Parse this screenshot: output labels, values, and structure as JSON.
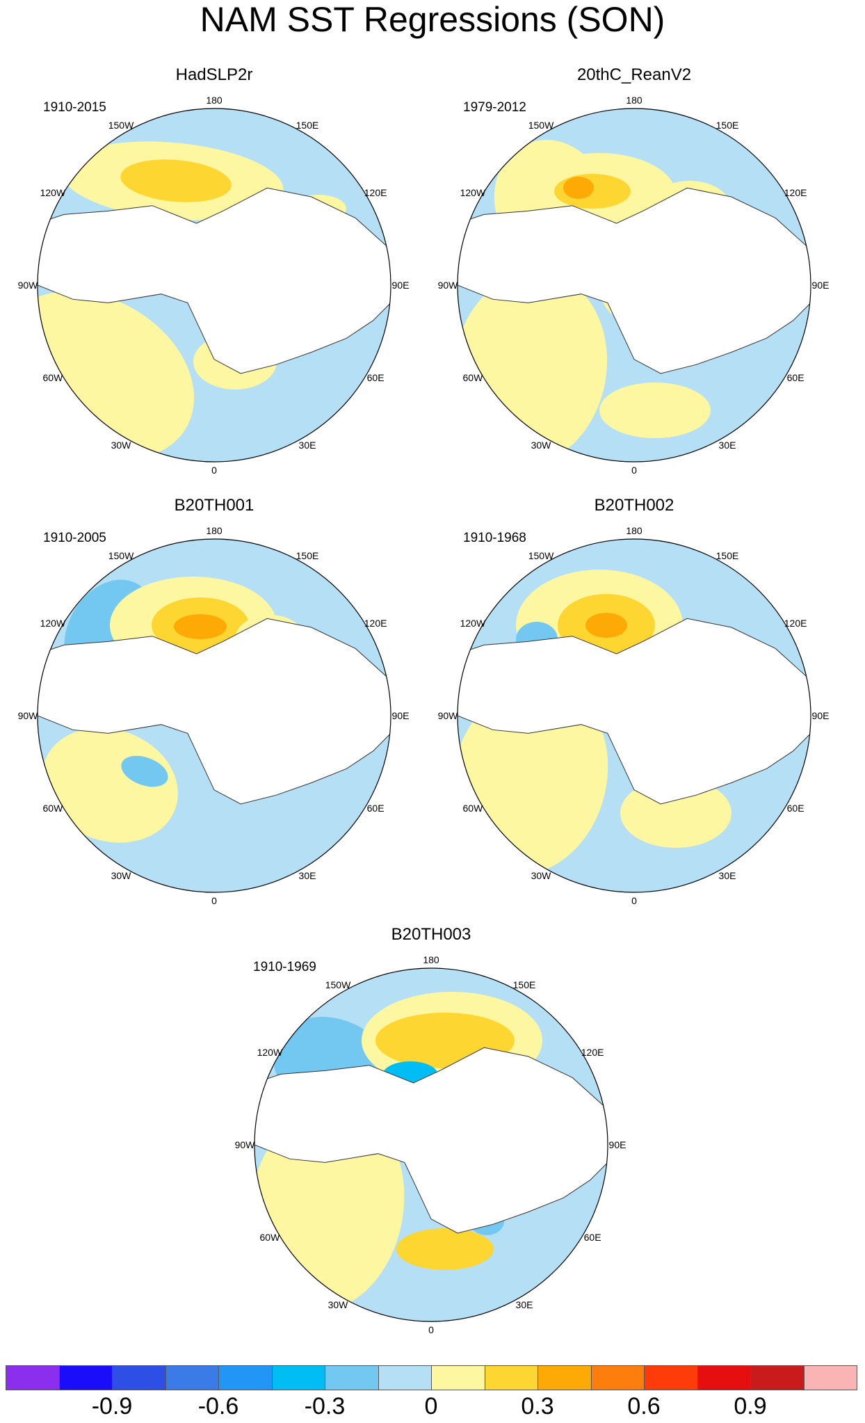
{
  "title": "NAM SST Regressions (SON)",
  "lon_labels": {
    "l180": "180",
    "l150e": "150E",
    "l120e": "120E",
    "l90e": "90E",
    "l60e": "60E",
    "l30e": "30E",
    "l0": "0",
    "l30w": "30W",
    "l60w": "60W",
    "l90w": "90W",
    "l120w": "120W",
    "l150w": "150W"
  },
  "panels": [
    {
      "title": "HadSLP2r",
      "period": "1910-2015"
    },
    {
      "title": "20thC_ReanV2",
      "period": "1979-2012"
    },
    {
      "title": "B20TH001",
      "period": "1910-2005"
    },
    {
      "title": "B20TH002",
      "period": "1910-1968"
    },
    {
      "title": "B20TH003",
      "period": "1910-1969"
    }
  ],
  "colorbar": {
    "colors": [
      "#8c2eee",
      "#1a0dfa",
      "#2e4fe6",
      "#3a7be8",
      "#2196f7",
      "#00bdf4",
      "#72c8f1",
      "#b4dff4",
      "#fdf7a1",
      "#fed631",
      "#fdaa06",
      "#fd7e0c",
      "#fe3c09",
      "#e70e10",
      "#c91b1b",
      "#fbb4b4"
    ],
    "ticks": [
      "-0.9",
      "-0.6",
      "-0.3",
      "0",
      "0.3",
      "0.6",
      "0.9"
    ]
  }
}
